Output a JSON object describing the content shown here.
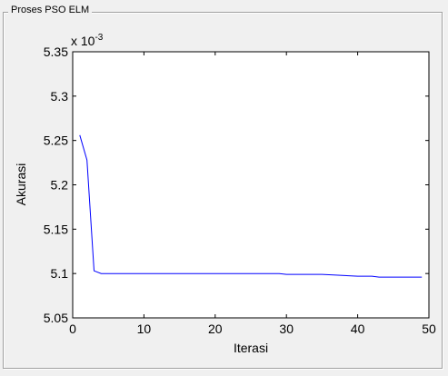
{
  "panel": {
    "title": "Proses PSO ELM"
  },
  "chart_data": {
    "type": "line",
    "title": "",
    "xlabel": "Iterasi",
    "ylabel": "Akurasi",
    "exponent_label": "x 10",
    "exponent_power": "-3",
    "xlim": [
      0,
      50
    ],
    "ylim": [
      5.05,
      5.35
    ],
    "xticks": [
      0,
      10,
      20,
      30,
      40,
      50
    ],
    "yticks": [
      5.05,
      5.1,
      5.15,
      5.2,
      5.25,
      5.3,
      5.35
    ],
    "xtick_labels": [
      "0",
      "10",
      "20",
      "30",
      "40",
      "50"
    ],
    "ytick_labels": [
      "5.05",
      "5.1",
      "5.15",
      "5.2",
      "5.25",
      "5.3",
      "5.35"
    ],
    "grid": false,
    "line_color": "#0000ff",
    "series": [
      {
        "x": [
          1,
          2,
          3,
          4,
          5,
          10,
          20,
          29,
          30,
          35,
          40,
          42,
          43,
          49
        ],
        "values": [
          5.256,
          5.228,
          5.103,
          5.1,
          5.1,
          5.1,
          5.1,
          5.1,
          5.099,
          5.099,
          5.097,
          5.097,
          5.096,
          5.096
        ]
      }
    ]
  }
}
